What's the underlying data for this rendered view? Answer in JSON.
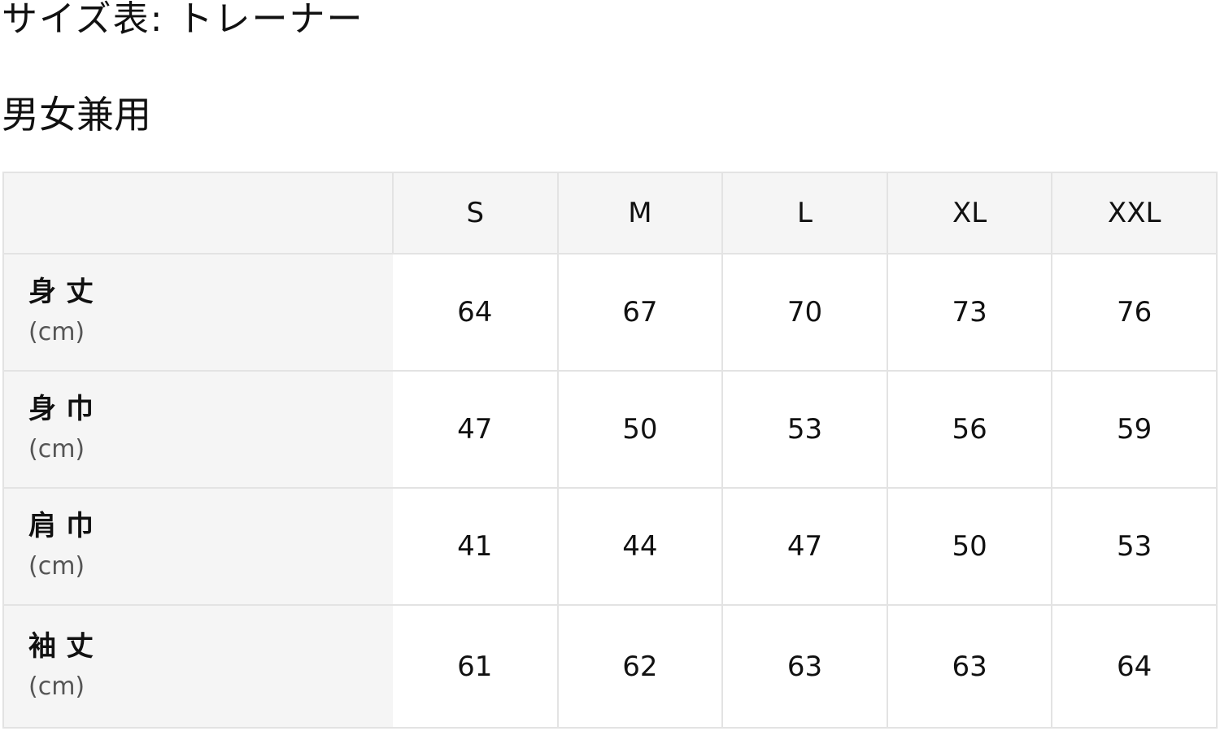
{
  "title": "サイズ表: トレーナー",
  "subtitle": "男女兼用",
  "table": {
    "columns": [
      "",
      "S",
      "M",
      "L",
      "XL",
      "XXL"
    ],
    "rows": [
      {
        "label": "身丈",
        "unit": "(cm)",
        "values": [
          "64",
          "67",
          "70",
          "73",
          "76"
        ]
      },
      {
        "label": "身巾",
        "unit": "(cm)",
        "values": [
          "47",
          "50",
          "53",
          "56",
          "59"
        ]
      },
      {
        "label": "肩巾",
        "unit": "(cm)",
        "values": [
          "41",
          "44",
          "47",
          "50",
          "53"
        ]
      },
      {
        "label": "袖丈",
        "unit": "(cm)",
        "values": [
          "61",
          "62",
          "63",
          "63",
          "64"
        ]
      }
    ]
  },
  "colors": {
    "header_bg": "#f5f5f5",
    "border": "#e3e3e3",
    "text": "#111111"
  }
}
